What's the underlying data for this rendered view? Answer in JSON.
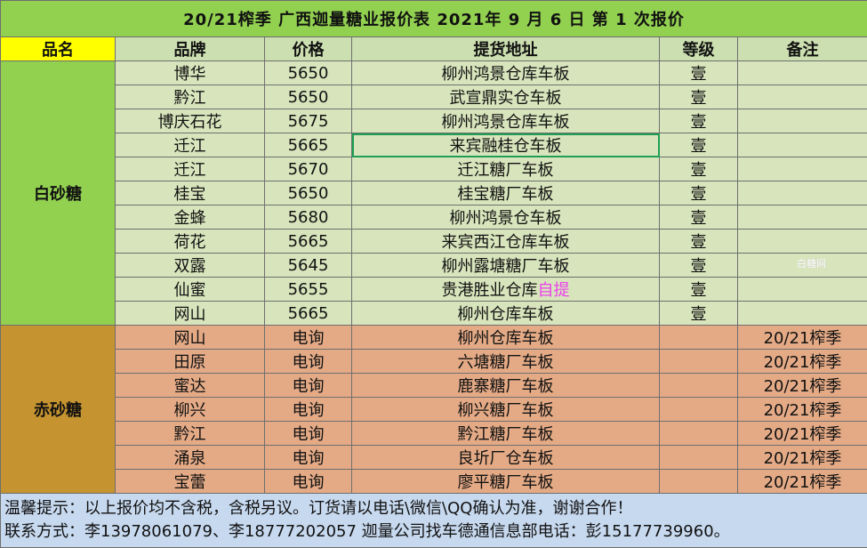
{
  "title": "20/21榨季  广西迦量糖业报价表  2021年  9  月  6  日  第  1  次报价",
  "headers": {
    "name": "品名",
    "brand": "品牌",
    "price": "价格",
    "location": "提货地址",
    "grade": "等级",
    "note": "备注"
  },
  "white_sugar": {
    "group_label": "白砂糖",
    "rows": [
      {
        "brand": "博华",
        "price": "5650",
        "location": "柳州鸿景仓库车板",
        "grade": "壹",
        "note": ""
      },
      {
        "brand": "黔江",
        "price": "5650",
        "location": "武宣鼎实仓车板",
        "grade": "壹",
        "note": ""
      },
      {
        "brand": "博庆石花",
        "price": "5675",
        "location": "柳州鸿景仓库车板",
        "grade": "壹",
        "note": ""
      },
      {
        "brand": "迁江",
        "price": "5665",
        "location": "来宾融桂仓车板",
        "grade": "壹",
        "note": ""
      },
      {
        "brand": "迁江",
        "price": "5670",
        "location": "迁江糖厂车板",
        "grade": "壹",
        "note": ""
      },
      {
        "brand": "桂宝",
        "price": "5650",
        "location": "桂宝糖厂车板",
        "grade": "壹",
        "note": ""
      },
      {
        "brand": "金蜂",
        "price": "5680",
        "location": "柳州鸿景仓车板",
        "grade": "壹",
        "note": ""
      },
      {
        "brand": "荷花",
        "price": "5665",
        "location": "来宾西江仓库车板",
        "grade": "壹",
        "note": ""
      },
      {
        "brand": "双露",
        "price": "5645",
        "location": "柳州露塘糖厂车板",
        "grade": "壹",
        "note": ""
      },
      {
        "brand": "仙蜜",
        "price": "5655",
        "location": "贵港胜业仓库",
        "location_extra": "自提",
        "grade": "壹",
        "note": ""
      },
      {
        "brand": "网山",
        "price": "5665",
        "location": "柳州仓库车板",
        "grade": "壹",
        "note": ""
      }
    ]
  },
  "red_sugar": {
    "group_label": "赤砂糖",
    "rows": [
      {
        "brand": "网山",
        "price": "电询",
        "location": "柳州仓库车板",
        "grade": "",
        "note": "20/21榨季"
      },
      {
        "brand": "田原",
        "price": "电询",
        "location": "六塘糖厂车板",
        "grade": "",
        "note": "20/21榨季"
      },
      {
        "brand": "蜜达",
        "price": "电询",
        "location": "鹿寨糖厂车板",
        "grade": "",
        "note": "20/21榨季"
      },
      {
        "brand": "柳兴",
        "price": "电询",
        "location": "柳兴糖厂车板",
        "grade": "",
        "note": "20/21榨季"
      },
      {
        "brand": "黔江",
        "price": "电询",
        "location": "黔江糖厂车板",
        "grade": "",
        "note": "20/21榨季"
      },
      {
        "brand": "涌泉",
        "price": "电询",
        "location": "良圻厂仓车板",
        "grade": "",
        "note": "20/21榨季"
      },
      {
        "brand": "宝蕾",
        "price": "电询",
        "location": "廖平糖厂车板",
        "grade": "",
        "note": "20/21榨季"
      }
    ]
  },
  "footer": {
    "tip": "温馨提示：以上报价均不含税，含税另议。订货请以电话\\微信\\QQ确认为准，谢谢合作！",
    "contact": "联系方式：李13978061079、李18777202057     迦量公司找车德通信息部电话：彭15177739960。"
  },
  "watermark": "白糖网",
  "colors": {
    "title_bg": "#92d050",
    "header_bg": "#ccdfb0",
    "name_header_bg": "#ffff00",
    "white_rows_bg": "#d8e4bc",
    "white_group_bg": "#92d050",
    "red_rows_bg": "#e4aa86",
    "red_group_bg": "#c5932f",
    "footer_bg": "#c7d9ef",
    "pickup_text": "#ee3fee",
    "selection_border": "#1e9f55"
  }
}
